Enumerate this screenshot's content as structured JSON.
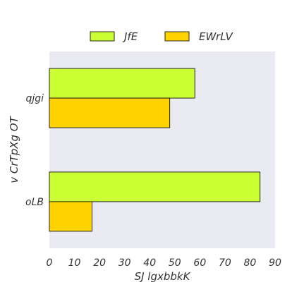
{
  "chart_data": {
    "type": "bar",
    "orientation": "horizontal",
    "categories": [
      "qjgi",
      "oLB"
    ],
    "series": [
      {
        "name": "JfE",
        "values": [
          58,
          84
        ],
        "color": "#CCFF33"
      },
      {
        "name": "EWrLV",
        "values": [
          48,
          17
        ],
        "color": "#FFD300"
      }
    ],
    "xlabel": "SJ lgxbbkK",
    "ylabel": "v CrTpXg OT",
    "xlim": [
      0,
      90
    ],
    "xticks": [
      0,
      10,
      20,
      30,
      40,
      50,
      60,
      70,
      80,
      90
    ],
    "grid": false,
    "legend_position": "top-center",
    "plot_background": "#EAEAF2"
  }
}
